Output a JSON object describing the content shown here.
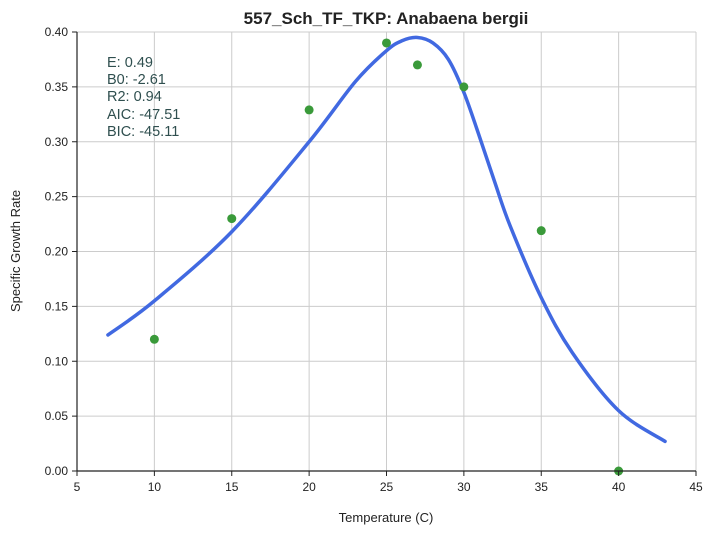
{
  "chart_data": {
    "type": "scatter",
    "title": "557_Sch_TF_TKP: Anabaena bergii",
    "xlabel": "Temperature (C)",
    "ylabel": "Specific Growth Rate",
    "xlim": [
      5,
      45
    ],
    "ylim": [
      0,
      0.4
    ],
    "xticks": [
      5,
      10,
      15,
      20,
      25,
      30,
      35,
      40,
      45
    ],
    "yticks": [
      0.0,
      0.05,
      0.1,
      0.15,
      0.2,
      0.25,
      0.3,
      0.35,
      0.4
    ],
    "xtick_labels": [
      "5",
      "10",
      "15",
      "20",
      "25",
      "30",
      "35",
      "40",
      "45"
    ],
    "ytick_labels": [
      "0.00",
      "0.05",
      "0.10",
      "0.15",
      "0.20",
      "0.25",
      "0.30",
      "0.35",
      "0.40"
    ],
    "grid": true,
    "points": {
      "color": "#3a9a3a",
      "x": [
        10,
        15,
        20,
        25,
        27,
        30,
        35,
        40
      ],
      "y": [
        0.12,
        0.23,
        0.329,
        0.39,
        0.37,
        0.35,
        0.219,
        0.0
      ]
    },
    "fit_curve": {
      "color": "#4169e1",
      "x": [
        7,
        10,
        15,
        20,
        23,
        25,
        26,
        27,
        28,
        29,
        30,
        31,
        32,
        33,
        35,
        37,
        40,
        43
      ],
      "y": [
        0.124,
        0.155,
        0.218,
        0.3,
        0.355,
        0.383,
        0.392,
        0.395,
        0.39,
        0.375,
        0.345,
        0.305,
        0.263,
        0.223,
        0.158,
        0.108,
        0.055,
        0.027
      ]
    },
    "annotations": [
      "E:  0.49",
      "B0:  -2.61",
      "R2:  0.94",
      "AIC: -47.51",
      "BIC: -45.11"
    ]
  }
}
